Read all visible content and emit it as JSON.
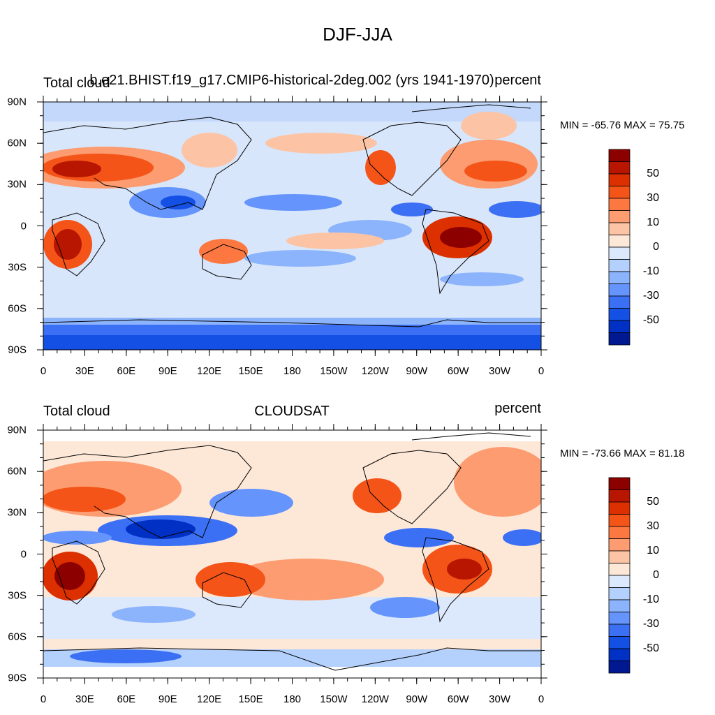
{
  "figure": {
    "title": "DJF-JJA"
  },
  "panels": [
    {
      "left_label": "Total cloud",
      "center_label": "b.e21.BHIST.f19_g17.CMIP6-historical-2deg.002 (yrs 1941-1970)",
      "right_label": "percent",
      "minmax": "MIN = -65.76 MAX =  75.75"
    },
    {
      "left_label": "Total cloud",
      "center_label": "CLOUDSAT",
      "right_label": "percent",
      "minmax": "MIN = -73.66 MAX =  81.18"
    }
  ],
  "axes": {
    "lon_ticks": [
      "0",
      "30E",
      "60E",
      "90E",
      "120E",
      "150E",
      "180",
      "150W",
      "120W",
      "90W",
      "60W",
      "30W",
      "0"
    ],
    "lat_ticks": [
      "90N",
      "60N",
      "30N",
      "0",
      "30S",
      "60S",
      "90S"
    ]
  },
  "colorbar": {
    "labels": [
      "50",
      "30",
      "10",
      "0",
      "-10",
      "-30",
      "-50"
    ],
    "colors": [
      "#8c0000",
      "#b81600",
      "#dc3000",
      "#f45418",
      "#fc7840",
      "#fc9c70",
      "#fcc4a4",
      "#fde8d8",
      "#dce8fc",
      "#b4d0fc",
      "#8cb4fc",
      "#6494fc",
      "#3c70f4",
      "#1450e4",
      "#0030c4",
      "#001890"
    ]
  },
  "palette": {
    "neutral": "#d2e2fa",
    "warm": "#f4622a",
    "cool": "#3c70f4"
  }
}
